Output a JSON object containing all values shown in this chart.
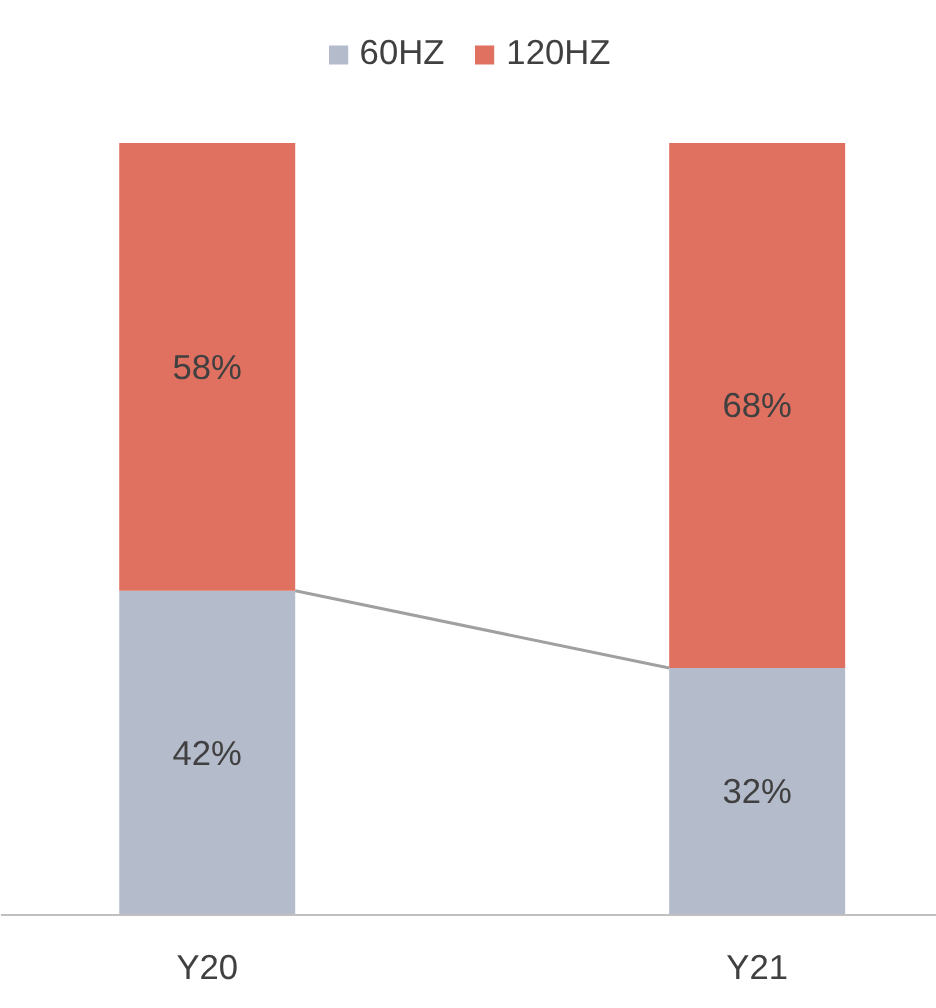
{
  "chart_data": {
    "type": "bar",
    "stacked": true,
    "categories": [
      "Y20",
      "Y21"
    ],
    "series": [
      {
        "name": "60HZ",
        "color": "#b4bccc",
        "values": [
          42,
          32
        ],
        "value_labels": [
          "42%",
          "32%"
        ]
      },
      {
        "name": "120HZ",
        "color": "#e07060",
        "values": [
          58,
          68
        ],
        "value_labels": [
          "58%",
          "68%"
        ]
      }
    ],
    "legend": "top"
  }
}
